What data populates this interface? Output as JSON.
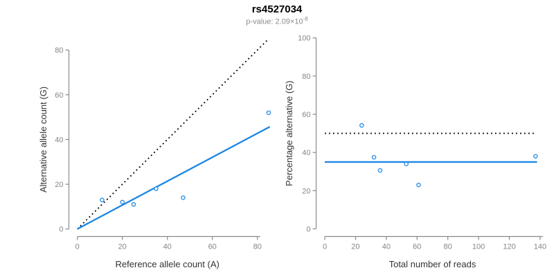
{
  "header": {
    "title": "rs4527034",
    "p_value_base": "p-value: 2.09×10",
    "p_value_exponent": "-8"
  },
  "colors": {
    "accent_blue": "#1E88E5",
    "line_black": "#000000",
    "axis_gray": "#8a8a8a",
    "tick_label_gray": "#858585",
    "axis_title_dark": "#333333",
    "subtitle_gray": "#8c8c8c"
  },
  "chart_data": [
    {
      "type": "scatter",
      "name": "allele-counts-scatter",
      "xlabel": "Reference allele count (A)",
      "ylabel": "Alternative allele count (G)",
      "xlim": [
        0,
        85
      ],
      "ylim": [
        0,
        85
      ],
      "xticks": [
        0,
        20,
        40,
        60,
        80
      ],
      "yticks": [
        0,
        20,
        40,
        60,
        80
      ],
      "grid": false,
      "legend": "none",
      "points": [
        [
          11,
          13
        ],
        [
          20,
          12
        ],
        [
          25,
          11
        ],
        [
          35,
          18
        ],
        [
          47,
          14
        ],
        [
          85,
          52
        ]
      ],
      "lines": [
        {
          "name": "identity-line",
          "style": "dotted",
          "color": "black",
          "x1": 0,
          "y1": 0,
          "x2": 84.5,
          "y2": 84.5
        },
        {
          "name": "regression-line",
          "style": "solid",
          "color": "blue",
          "x1": 0,
          "y1": 0,
          "x2": 85.5,
          "y2": 45.7
        }
      ]
    },
    {
      "type": "scatter",
      "name": "percentage-vs-reads-scatter",
      "xlabel": "Total number of reads",
      "ylabel": "Percentage alternative (G)",
      "xlim": [
        0,
        140
      ],
      "ylim": [
        0,
        100
      ],
      "xticks": [
        0,
        20,
        40,
        60,
        80,
        100,
        120,
        140
      ],
      "yticks": [
        0,
        20,
        40,
        60,
        80,
        100
      ],
      "grid": false,
      "legend": "none",
      "points": [
        [
          24,
          54.2
        ],
        [
          32,
          37.5
        ],
        [
          36,
          30.6
        ],
        [
          53,
          34
        ],
        [
          61,
          23
        ],
        [
          137,
          38
        ]
      ],
      "lines": [
        {
          "name": "fifty-percent-line",
          "style": "dotted",
          "color": "black",
          "x1": 0,
          "y1": 50,
          "x2": 136.5,
          "y2": 50
        },
        {
          "name": "mean-percentage-line",
          "style": "solid",
          "color": "blue",
          "x1": 0,
          "y1": 35,
          "x2": 138,
          "y2": 35
        }
      ]
    }
  ]
}
